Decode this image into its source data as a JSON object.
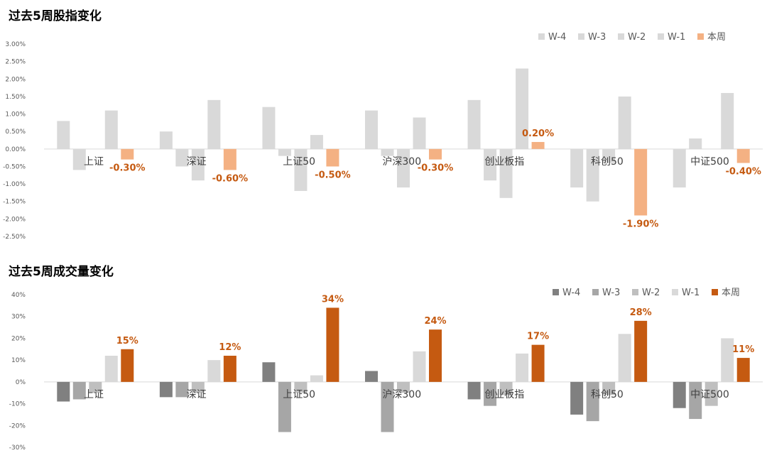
{
  "chart_data": [
    {
      "type": "bar",
      "title": "过去5周股指变化",
      "categories": [
        "上证",
        "深证",
        "上证50",
        "沪深300",
        "创业板指",
        "科创50",
        "中证500"
      ],
      "ylim": [
        -0.025,
        0.03
      ],
      "yticks": [
        0.03,
        0.025,
        0.02,
        0.015,
        0.01,
        0.005,
        0.0,
        -0.005,
        -0.01,
        -0.015,
        -0.02,
        -0.025
      ],
      "ytick_labels": [
        "3.00%",
        "2.50%",
        "2.00%",
        "1.50%",
        "1.00%",
        "0.50%",
        "0.00%",
        "-0.50%",
        "-1.00%",
        "-1.50%",
        "-2.00%",
        "-2.50%"
      ],
      "legend_position": "top-right",
      "grid": false,
      "series": [
        {
          "name": "W-4",
          "color": "#d9d9d9",
          "values": [
            0.008,
            0.005,
            0.012,
            0.011,
            0.014,
            -0.011,
            -0.011
          ]
        },
        {
          "name": "W-3",
          "color": "#d9d9d9",
          "values": [
            -0.006,
            -0.005,
            -0.002,
            -0.002,
            -0.009,
            -0.015,
            0.003
          ]
        },
        {
          "name": "W-2",
          "color": "#d9d9d9",
          "values": [
            0.0,
            -0.009,
            -0.012,
            -0.011,
            -0.014,
            -0.004,
            0.0
          ]
        },
        {
          "name": "W-1",
          "color": "#d9d9d9",
          "values": [
            0.011,
            0.014,
            0.004,
            0.009,
            0.023,
            0.015,
            0.016
          ]
        },
        {
          "name": "本周",
          "color": "#f4b183",
          "values": [
            -0.003,
            -0.006,
            -0.005,
            -0.003,
            0.002,
            -0.019,
            -0.004
          ]
        }
      ],
      "data_labels": [
        "-0.30%",
        "-0.60%",
        "-0.50%",
        "-0.30%",
        "0.20%",
        "-1.90%",
        "-0.40%"
      ]
    },
    {
      "type": "bar",
      "title": "过去5周成交量变化",
      "categories": [
        "上证",
        "深证",
        "上证50",
        "沪深300",
        "创业板指",
        "科创50",
        "中证500"
      ],
      "ylim": [
        -0.3,
        0.4
      ],
      "yticks": [
        0.4,
        0.3,
        0.2,
        0.1,
        0.0,
        -0.1,
        -0.2,
        -0.3
      ],
      "ytick_labels": [
        "40%",
        "30%",
        "20%",
        "10%",
        "0%",
        "-10%",
        "-20%",
        "-30%"
      ],
      "legend_position": "top-right",
      "grid": false,
      "series": [
        {
          "name": "W-4",
          "color": "#808080",
          "values": [
            -0.09,
            -0.07,
            0.09,
            0.05,
            -0.08,
            -0.15,
            -0.12
          ]
        },
        {
          "name": "W-3",
          "color": "#a6a6a6",
          "values": [
            -0.08,
            -0.07,
            -0.23,
            -0.23,
            -0.11,
            -0.18,
            -0.17
          ]
        },
        {
          "name": "W-2",
          "color": "#bfbfbf",
          "values": [
            -0.05,
            -0.05,
            -0.05,
            -0.05,
            -0.06,
            -0.06,
            -0.11
          ]
        },
        {
          "name": "W-1",
          "color": "#d9d9d9",
          "values": [
            0.12,
            0.1,
            0.03,
            0.14,
            0.13,
            0.22,
            0.2
          ]
        },
        {
          "name": "本周",
          "color": "#c55a11",
          "values": [
            0.15,
            0.12,
            0.34,
            0.24,
            0.17,
            0.28,
            0.11
          ]
        }
      ],
      "data_labels": [
        "15%",
        "12%",
        "34%",
        "24%",
        "17%",
        "28%",
        "11%"
      ]
    }
  ]
}
